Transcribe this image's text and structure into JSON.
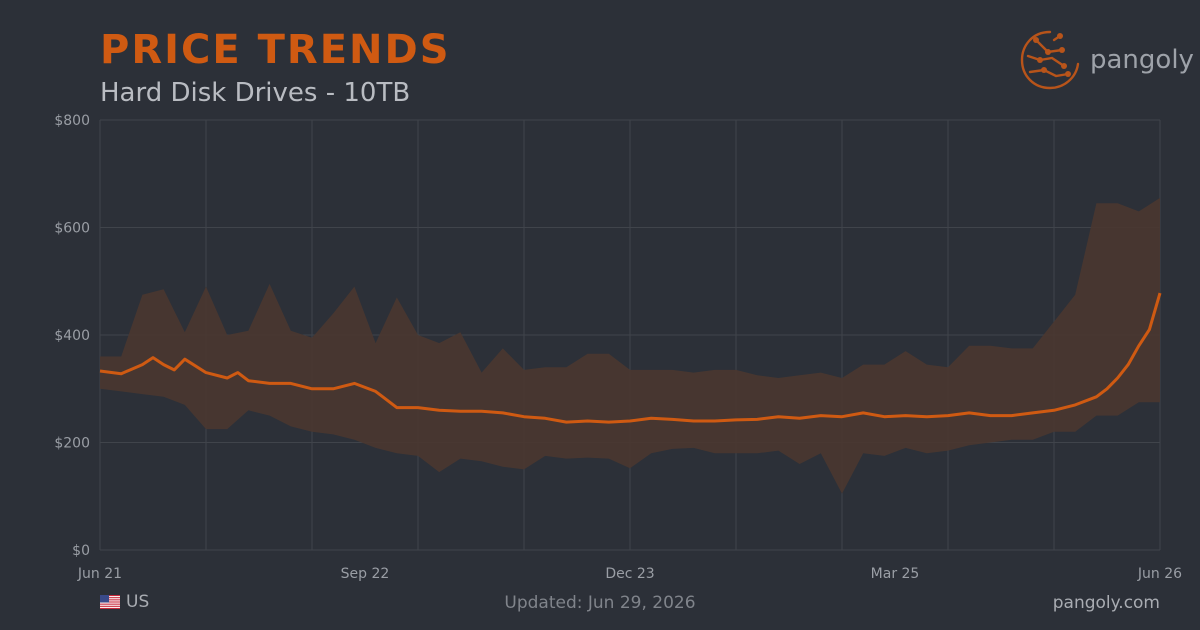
{
  "header": {
    "title": "PRICE TRENDS",
    "subtitle": "Hard Disk Drives - 10TB"
  },
  "brand": {
    "name": "pangoly",
    "icon": "circuit-leaf-logo-icon"
  },
  "footer": {
    "region_label": "US",
    "region_icon": "us-flag-icon",
    "updated": "Updated: Jun 29, 2026",
    "site": "pangoly.com"
  },
  "colors": {
    "background": "#2c3038",
    "accent": "#cf5a12",
    "band": "#4a3730",
    "grid": "#40444b"
  },
  "chart_data": {
    "type": "area",
    "title": "PRICE TRENDS",
    "subtitle": "Hard Disk Drives - 10TB",
    "x_ticks": [
      "Jun 21",
      "Sep 22",
      "Dec 23",
      "Mar 25",
      "Jun 26"
    ],
    "x_range": [
      0,
      100
    ],
    "ylim": [
      0,
      800
    ],
    "y_ticks": [
      {
        "value": 0,
        "label": "$0"
      },
      {
        "value": 200,
        "label": "$200"
      },
      {
        "value": 400,
        "label": "$400"
      },
      {
        "value": 600,
        "label": "$600"
      },
      {
        "value": 800,
        "label": "$800"
      }
    ],
    "grid": true,
    "legend": "none",
    "series": [
      {
        "kind": "range-band",
        "x": [
          0,
          2,
          4,
          6,
          8,
          10,
          12,
          14,
          16,
          18,
          20,
          22,
          24,
          26,
          28,
          30,
          32,
          34,
          36,
          38,
          40,
          42,
          44,
          46,
          48,
          50,
          52,
          54,
          56,
          58,
          60,
          62,
          64,
          66,
          68,
          70,
          72,
          74,
          76,
          78,
          80,
          82,
          84,
          86,
          88,
          90,
          92,
          94,
          96,
          98,
          100
        ],
        "high": [
          360,
          360,
          475,
          485,
          405,
          490,
          400,
          408,
          495,
          408,
          395,
          440,
          490,
          385,
          470,
          400,
          385,
          405,
          330,
          375,
          335,
          340,
          340,
          365,
          365,
          335,
          335,
          335,
          330,
          335,
          335,
          325,
          320,
          325,
          330,
          320,
          345,
          345,
          370,
          345,
          340,
          380,
          380,
          375,
          375,
          425,
          475,
          645,
          645,
          630,
          655
        ],
        "low": [
          300,
          295,
          290,
          285,
          270,
          225,
          225,
          260,
          250,
          230,
          220,
          215,
          205,
          190,
          180,
          175,
          145,
          170,
          165,
          155,
          150,
          175,
          170,
          172,
          170,
          152,
          180,
          188,
          190,
          180,
          180,
          180,
          185,
          160,
          180,
          105,
          180,
          175,
          190,
          180,
          185,
          195,
          200,
          205,
          205,
          220,
          220,
          250,
          250,
          275,
          275
        ]
      },
      {
        "kind": "line",
        "x": [
          0,
          2,
          4,
          5,
          6,
          7,
          8,
          10,
          12,
          13,
          14,
          16,
          18,
          20,
          22,
          24,
          26,
          28,
          30,
          32,
          34,
          36,
          38,
          40,
          42,
          44,
          46,
          48,
          50,
          52,
          54,
          56,
          58,
          60,
          62,
          64,
          66,
          68,
          70,
          72,
          74,
          76,
          78,
          80,
          82,
          84,
          86,
          88,
          90,
          92,
          94,
          95,
          96,
          97,
          98,
          99,
          100
        ],
        "price": [
          333,
          328,
          345,
          358,
          345,
          335,
          355,
          330,
          320,
          330,
          315,
          310,
          310,
          300,
          300,
          310,
          295,
          265,
          265,
          260,
          258,
          258,
          255,
          248,
          245,
          238,
          240,
          238,
          240,
          245,
          243,
          240,
          240,
          242,
          243,
          248,
          245,
          250,
          248,
          255,
          248,
          250,
          248,
          250,
          255,
          250,
          250,
          255,
          260,
          270,
          285,
          300,
          320,
          345,
          380,
          410,
          478
        ]
      }
    ]
  }
}
